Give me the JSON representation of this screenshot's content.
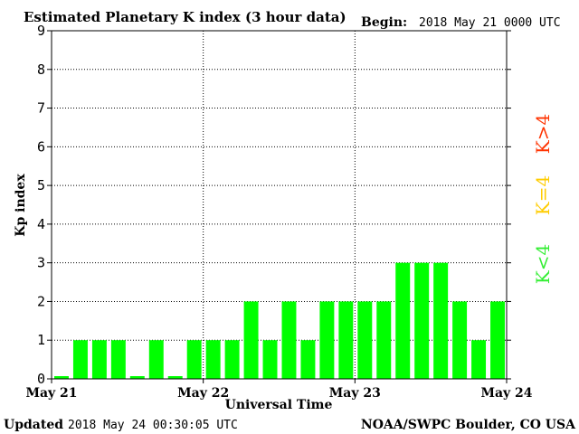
{
  "header": {
    "title": "Estimated Planetary K index (3 hour data)",
    "begin_label": "Begin:",
    "begin_value": "2018 May 21 0000 UTC"
  },
  "footer": {
    "updated_label": "Updated",
    "updated_value": "2018 May 24 00:30:05 UTC",
    "source": "NOAA/SWPC Boulder, CO USA"
  },
  "legend": {
    "high": {
      "label": "K>4",
      "color": "#ff3300"
    },
    "equal": {
      "label": "K=4",
      "color": "#ffcc00"
    },
    "low": {
      "label": "K<4",
      "color": "#33ee33"
    }
  },
  "chart_data": {
    "type": "bar",
    "title": "Estimated Planetary K index (3 hour data)",
    "xlabel": "Universal Time",
    "ylabel": "Kp index",
    "ylim": [
      0,
      9
    ],
    "yticks": [
      0,
      1,
      2,
      3,
      4,
      5,
      6,
      7,
      8,
      9
    ],
    "xticks": [
      "May 21",
      "May 22",
      "May 23",
      "May 24"
    ],
    "grid": true,
    "bar_color": "#00ff00",
    "series": [
      {
        "values": [
          0,
          1,
          1,
          1,
          0,
          1,
          0,
          1,
          1,
          1,
          2,
          1,
          2,
          1,
          2,
          2,
          2,
          2,
          3,
          3,
          3,
          2,
          1,
          2
        ]
      }
    ]
  }
}
